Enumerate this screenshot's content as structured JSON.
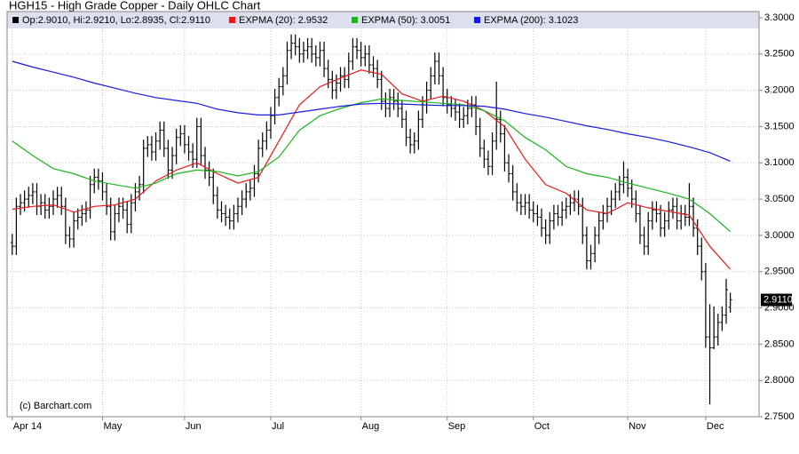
{
  "chart_data": {
    "type": "ohlc",
    "title": "HGH15 - High Grade Copper - Daily OHLC Chart",
    "credit": "(c) Barchart.com",
    "ohlc_legend": "Op:2.9010, Hi:2.9210, Lo:2.8935, Cl:2.9110",
    "ohlc_color": "#000000",
    "last_price": {
      "value": 2.911,
      "label": "2.9110"
    },
    "ylim": [
      2.75,
      3.3
    ],
    "yticks": [
      {
        "value": 3.3,
        "label": "3.3000"
      },
      {
        "value": 3.25,
        "label": "3.2500"
      },
      {
        "value": 3.2,
        "label": "3.2000"
      },
      {
        "value": 3.15,
        "label": "3.1500"
      },
      {
        "value": 3.1,
        "label": "3.1000"
      },
      {
        "value": 3.05,
        "label": "3.0500"
      },
      {
        "value": 3.0,
        "label": "3.0000"
      },
      {
        "value": 2.95,
        "label": "2.9500"
      },
      {
        "value": 2.9,
        "label": "2.9000"
      },
      {
        "value": 2.85,
        "label": "2.8500"
      },
      {
        "value": 2.8,
        "label": "2.8000"
      },
      {
        "value": 2.75,
        "label": "2.7500"
      }
    ],
    "xlim": [
      -0.6,
      182
    ],
    "xticks": [
      {
        "value": 0,
        "label": "Apr 14"
      },
      {
        "value": 22,
        "label": "May"
      },
      {
        "value": 42,
        "label": "Jun"
      },
      {
        "value": 63,
        "label": "Jul"
      },
      {
        "value": 85,
        "label": "Aug"
      },
      {
        "value": 106,
        "label": "Sep"
      },
      {
        "value": 127,
        "label": "Oct"
      },
      {
        "value": 150,
        "label": "Nov"
      },
      {
        "value": 169,
        "label": "Dec"
      }
    ],
    "grid": true,
    "open": [
      2.99,
      2.985,
      3.04,
      3.045,
      3.05,
      3.055,
      3.06,
      3.04,
      3.045,
      3.035,
      3.04,
      3.05,
      3.055,
      3.04,
      3.0,
      2.995,
      3.02,
      3.025,
      3.03,
      3.035,
      3.07,
      3.08,
      3.075,
      3.06,
      3.04,
      3.005,
      3.03,
      3.04,
      3.035,
      3.015,
      3.045,
      3.06,
      3.07,
      3.12,
      3.125,
      3.115,
      3.13,
      3.145,
      3.12,
      3.09,
      3.11,
      3.135,
      3.14,
      3.125,
      3.115,
      3.105,
      3.15,
      3.11,
      3.09,
      3.08,
      3.055,
      3.035,
      3.03,
      3.025,
      3.02,
      3.03,
      3.04,
      3.05,
      3.06,
      3.065,
      3.085,
      3.12,
      3.13,
      3.145,
      3.165,
      3.19,
      3.205,
      3.22,
      3.255,
      3.265,
      3.26,
      3.25,
      3.255,
      3.26,
      3.25,
      3.245,
      3.255,
      3.23,
      3.215,
      3.2,
      3.21,
      3.22,
      3.215,
      3.24,
      3.26,
      3.255,
      3.245,
      3.25,
      3.235,
      3.23,
      3.215,
      3.185,
      3.175,
      3.19,
      3.185,
      3.175,
      3.16,
      3.135,
      3.125,
      3.13,
      3.16,
      3.18,
      3.2,
      3.22,
      3.24,
      3.22,
      3.19,
      3.18,
      3.175,
      3.17,
      3.16,
      3.165,
      3.175,
      3.18,
      3.15,
      3.12,
      3.105,
      3.095,
      3.13,
      3.16,
      3.14,
      3.1,
      3.085,
      3.06,
      3.045,
      3.04,
      3.045,
      3.035,
      3.03,
      3.025,
      3.01,
      3.0,
      3.02,
      3.03,
      3.025,
      3.035,
      3.04,
      3.045,
      3.05,
      3.04,
      3.0,
      2.965,
      2.975,
      3.0,
      3.02,
      3.03,
      3.04,
      3.05,
      3.06,
      3.07,
      3.08,
      3.065,
      3.05,
      3.03,
      3.0,
      2.985,
      3.02,
      3.035,
      3.03,
      3.01,
      3.02,
      3.035,
      3.04,
      3.02,
      3.03,
      3.025,
      3.04,
      3.01,
      2.985,
      2.95,
      2.86,
      2.845,
      2.86,
      2.88,
      2.89,
      2.901
    ],
    "high": [
      3.002,
      3.052,
      3.057,
      3.062,
      3.067,
      3.072,
      3.072,
      3.057,
      3.057,
      3.052,
      3.062,
      3.067,
      3.067,
      3.052,
      3.012,
      3.032,
      3.037,
      3.042,
      3.047,
      3.082,
      3.092,
      3.092,
      3.087,
      3.072,
      3.052,
      3.042,
      3.052,
      3.052,
      3.047,
      3.057,
      3.072,
      3.082,
      3.132,
      3.137,
      3.137,
      3.142,
      3.157,
      3.157,
      3.132,
      3.122,
      3.147,
      3.152,
      3.152,
      3.137,
      3.127,
      3.162,
      3.162,
      3.122,
      3.102,
      3.092,
      3.067,
      3.047,
      3.042,
      3.037,
      3.042,
      3.052,
      3.062,
      3.072,
      3.077,
      3.097,
      3.132,
      3.142,
      3.157,
      3.177,
      3.202,
      3.217,
      3.232,
      3.267,
      3.277,
      3.277,
      3.272,
      3.267,
      3.272,
      3.272,
      3.262,
      3.267,
      3.267,
      3.242,
      3.227,
      3.222,
      3.232,
      3.232,
      3.252,
      3.272,
      3.272,
      3.267,
      3.262,
      3.262,
      3.247,
      3.242,
      3.227,
      3.197,
      3.202,
      3.202,
      3.197,
      3.187,
      3.172,
      3.147,
      3.142,
      3.172,
      3.192,
      3.212,
      3.232,
      3.252,
      3.252,
      3.232,
      3.202,
      3.192,
      3.187,
      3.182,
      3.177,
      3.187,
      3.192,
      3.192,
      3.162,
      3.132,
      3.117,
      3.142,
      3.212,
      3.172,
      3.152,
      3.112,
      3.097,
      3.072,
      3.057,
      3.057,
      3.057,
      3.047,
      3.042,
      3.037,
      3.022,
      3.032,
      3.042,
      3.042,
      3.047,
      3.052,
      3.057,
      3.062,
      3.062,
      3.052,
      3.012,
      2.987,
      3.012,
      3.032,
      3.042,
      3.052,
      3.062,
      3.072,
      3.082,
      3.102,
      3.092,
      3.077,
      3.062,
      3.042,
      3.012,
      3.032,
      3.047,
      3.047,
      3.042,
      3.032,
      3.047,
      3.052,
      3.052,
      3.042,
      3.042,
      3.072,
      3.052,
      3.022,
      2.997,
      2.962,
      2.905,
      2.902,
      2.892,
      2.902,
      2.94,
      2.921
    ],
    "low": [
      2.973,
      2.973,
      3.028,
      3.033,
      3.038,
      3.043,
      3.028,
      3.028,
      3.023,
      3.023,
      3.028,
      3.038,
      3.028,
      2.988,
      2.983,
      2.983,
      3.008,
      3.013,
      3.018,
      3.023,
      3.058,
      3.063,
      3.048,
      3.028,
      2.993,
      2.993,
      3.018,
      3.023,
      3.003,
      3.003,
      3.033,
      3.048,
      3.058,
      3.108,
      3.103,
      3.103,
      3.118,
      3.108,
      3.078,
      3.078,
      3.098,
      3.123,
      3.113,
      3.103,
      3.093,
      3.093,
      3.098,
      3.078,
      3.068,
      3.043,
      3.023,
      3.018,
      3.013,
      3.008,
      3.008,
      3.018,
      3.028,
      3.038,
      3.048,
      3.053,
      3.073,
      3.108,
      3.118,
      3.133,
      3.153,
      3.178,
      3.193,
      3.208,
      3.243,
      3.248,
      3.238,
      3.238,
      3.243,
      3.238,
      3.233,
      3.233,
      3.218,
      3.203,
      3.188,
      3.188,
      3.198,
      3.203,
      3.203,
      3.228,
      3.243,
      3.233,
      3.233,
      3.223,
      3.218,
      3.203,
      3.173,
      3.163,
      3.163,
      3.173,
      3.163,
      3.148,
      3.123,
      3.113,
      3.113,
      3.118,
      3.148,
      3.168,
      3.188,
      3.208,
      3.208,
      3.178,
      3.168,
      3.163,
      3.158,
      3.148,
      3.148,
      3.153,
      3.163,
      3.138,
      3.108,
      3.093,
      3.083,
      3.083,
      3.118,
      3.128,
      3.088,
      3.073,
      3.048,
      3.033,
      3.028,
      3.028,
      3.023,
      3.018,
      3.013,
      2.998,
      2.988,
      2.988,
      3.008,
      3.013,
      3.013,
      3.023,
      3.028,
      3.033,
      3.028,
      2.988,
      2.953,
      2.953,
      2.963,
      2.988,
      3.008,
      3.018,
      3.028,
      3.038,
      3.048,
      3.058,
      3.053,
      3.038,
      3.018,
      2.988,
      2.973,
      2.973,
      3.008,
      3.018,
      2.998,
      2.998,
      3.008,
      3.023,
      3.008,
      3.008,
      3.013,
      3.013,
      2.998,
      2.973,
      2.938,
      2.845,
      2.767,
      2.843,
      2.848,
      2.868,
      2.878,
      2.8935
    ],
    "close": [
      2.985,
      3.04,
      3.045,
      3.05,
      3.055,
      3.06,
      3.04,
      3.045,
      3.035,
      3.04,
      3.05,
      3.055,
      3.04,
      3.0,
      2.995,
      3.02,
      3.025,
      3.03,
      3.035,
      3.07,
      3.08,
      3.075,
      3.06,
      3.04,
      3.005,
      3.03,
      3.04,
      3.035,
      3.015,
      3.045,
      3.06,
      3.07,
      3.12,
      3.125,
      3.115,
      3.13,
      3.145,
      3.12,
      3.09,
      3.11,
      3.135,
      3.14,
      3.125,
      3.115,
      3.105,
      3.15,
      3.11,
      3.09,
      3.08,
      3.055,
      3.035,
      3.03,
      3.025,
      3.02,
      3.03,
      3.04,
      3.05,
      3.06,
      3.065,
      3.085,
      3.12,
      3.13,
      3.145,
      3.165,
      3.19,
      3.205,
      3.22,
      3.255,
      3.265,
      3.26,
      3.25,
      3.255,
      3.26,
      3.25,
      3.245,
      3.255,
      3.23,
      3.215,
      3.2,
      3.21,
      3.22,
      3.215,
      3.24,
      3.26,
      3.255,
      3.245,
      3.25,
      3.235,
      3.23,
      3.215,
      3.185,
      3.175,
      3.19,
      3.185,
      3.175,
      3.16,
      3.135,
      3.125,
      3.13,
      3.16,
      3.18,
      3.2,
      3.22,
      3.24,
      3.22,
      3.19,
      3.18,
      3.175,
      3.17,
      3.16,
      3.165,
      3.175,
      3.18,
      3.15,
      3.12,
      3.105,
      3.095,
      3.13,
      3.16,
      3.14,
      3.1,
      3.085,
      3.06,
      3.045,
      3.04,
      3.045,
      3.035,
      3.03,
      3.025,
      3.01,
      3.0,
      3.02,
      3.03,
      3.025,
      3.035,
      3.04,
      3.045,
      3.05,
      3.04,
      3.0,
      2.965,
      2.975,
      3.0,
      3.02,
      3.03,
      3.04,
      3.05,
      3.06,
      3.07,
      3.08,
      3.065,
      3.05,
      3.03,
      3.0,
      2.985,
      3.02,
      3.035,
      3.03,
      3.01,
      3.02,
      3.035,
      3.04,
      3.02,
      3.03,
      3.025,
      3.04,
      3.01,
      2.985,
      2.95,
      2.86,
      2.845,
      2.86,
      2.88,
      2.89,
      2.925,
      2.911
    ],
    "series": [
      {
        "name": "EXPMA (20): 2.9532",
        "color": "#e8191b",
        "x": [
          0,
          5,
          10,
          15,
          20,
          25,
          30,
          35,
          40,
          45,
          50,
          55,
          60,
          65,
          70,
          75,
          80,
          85,
          90,
          95,
          100,
          105,
          110,
          115,
          120,
          125,
          130,
          135,
          140,
          145,
          150,
          155,
          160,
          165,
          170,
          175
        ],
        "values": [
          3.036,
          3.04,
          3.042,
          3.032,
          3.04,
          3.042,
          3.05,
          3.075,
          3.09,
          3.1,
          3.085,
          3.072,
          3.08,
          3.13,
          3.18,
          3.205,
          3.217,
          3.228,
          3.222,
          3.195,
          3.185,
          3.192,
          3.185,
          3.172,
          3.15,
          3.105,
          3.07,
          3.058,
          3.035,
          3.03,
          3.045,
          3.038,
          3.033,
          3.028,
          2.985,
          2.9532
        ]
      },
      {
        "name": "EXPMA (50): 3.0051",
        "color": "#1cb51c",
        "x": [
          0,
          5,
          10,
          15,
          20,
          25,
          30,
          35,
          40,
          45,
          50,
          55,
          60,
          65,
          70,
          75,
          80,
          85,
          90,
          95,
          100,
          105,
          110,
          115,
          120,
          125,
          130,
          135,
          140,
          145,
          150,
          155,
          160,
          165,
          170,
          175
        ],
        "values": [
          3.13,
          3.11,
          3.092,
          3.085,
          3.075,
          3.07,
          3.065,
          3.072,
          3.085,
          3.09,
          3.088,
          3.082,
          3.088,
          3.108,
          3.145,
          3.165,
          3.175,
          3.183,
          3.188,
          3.186,
          3.184,
          3.182,
          3.18,
          3.172,
          3.158,
          3.135,
          3.118,
          3.095,
          3.085,
          3.08,
          3.072,
          3.065,
          3.058,
          3.05,
          3.03,
          3.0051
        ]
      },
      {
        "name": "EXPMA (200): 3.1023",
        "color": "#1a1adf",
        "x": [
          0,
          5,
          10,
          15,
          20,
          25,
          30,
          35,
          40,
          45,
          50,
          55,
          60,
          65,
          70,
          75,
          80,
          85,
          90,
          95,
          100,
          105,
          110,
          115,
          120,
          125,
          130,
          135,
          140,
          145,
          150,
          155,
          160,
          165,
          170,
          175
        ],
        "values": [
          3.24,
          3.232,
          3.225,
          3.218,
          3.21,
          3.203,
          3.196,
          3.19,
          3.186,
          3.182,
          3.174,
          3.169,
          3.166,
          3.166,
          3.17,
          3.174,
          3.178,
          3.181,
          3.182,
          3.181,
          3.18,
          3.179,
          3.179,
          3.178,
          3.174,
          3.168,
          3.163,
          3.157,
          3.151,
          3.146,
          3.14,
          3.135,
          3.129,
          3.122,
          3.114,
          3.1023
        ]
      }
    ]
  }
}
